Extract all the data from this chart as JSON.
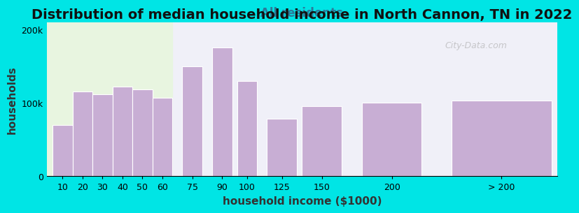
{
  "title": "Distribution of median household income in North Cannon, TN in 2022",
  "subtitle": "All residents",
  "xlabel": "household income ($1000)",
  "ylabel": "households",
  "bar_labels": [
    "10",
    "20",
    "30",
    "40",
    "50",
    "60",
    "75",
    "90",
    "100",
    "125",
    "150",
    "200",
    "> 200"
  ],
  "bar_heights": [
    70000,
    115000,
    112000,
    122000,
    118000,
    107000,
    150000,
    175000,
    130000,
    78000,
    95000,
    100000,
    103000
  ],
  "bar_color": "#c8aed4",
  "bar_edge_color": "#ffffff",
  "background_outer": "#00e5e5",
  "plot_bg_left": "#e8f5e0",
  "plot_bg_right": "#f0f0f8",
  "yticks": [
    0,
    100000,
    200000
  ],
  "ytick_labels": [
    "0",
    "100k",
    "200k"
  ],
  "ylim": [
    0,
    210000
  ],
  "title_fontsize": 14,
  "subtitle_fontsize": 12,
  "axis_label_fontsize": 11,
  "watermark": "City-Data.com"
}
